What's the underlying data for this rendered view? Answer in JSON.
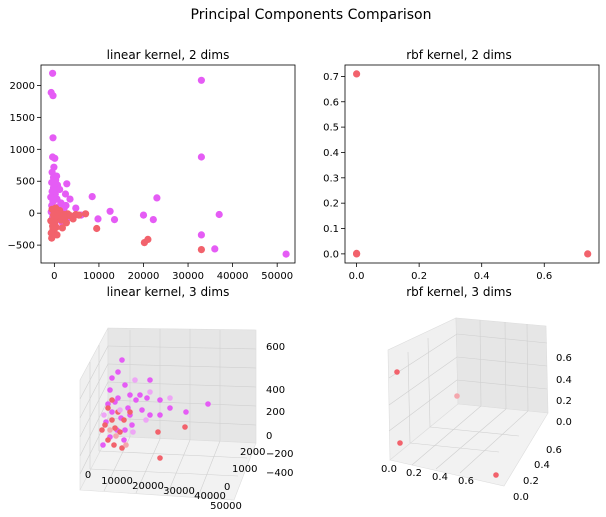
{
  "figure": {
    "title": "Principal Components Comparison"
  },
  "colors": {
    "magenta": "#e55cf5",
    "coral": "#f2626c",
    "light_magenta": "#eea6f6",
    "light_coral": "#f4a7ad"
  },
  "chart_data": [
    {
      "type": "scatter",
      "title": "linear kernel, 2 dims",
      "xlim": [
        -3000,
        54000
      ],
      "ylim": [
        -780,
        2320
      ],
      "xticks": [
        0,
        10000,
        20000,
        30000,
        40000,
        50000
      ],
      "xtick_labels": [
        "0",
        "10000",
        "20000",
        "30000",
        "40000",
        "50000"
      ],
      "yticks": [
        -500,
        0,
        500,
        1000,
        1500,
        2000
      ],
      "ytick_labels": [
        "−500",
        "0",
        "500",
        "1000",
        "1500",
        "2000"
      ],
      "series": [
        {
          "color": "#e55cf5",
          "points": [
            [
              -400,
              2190
            ],
            [
              -700,
              1890
            ],
            [
              -300,
              1840
            ],
            [
              -300,
              1180
            ],
            [
              -400,
              880
            ],
            [
              100,
              860
            ],
            [
              -500,
              640
            ],
            [
              -200,
              560
            ],
            [
              300,
              520
            ],
            [
              -600,
              480
            ],
            [
              700,
              440
            ],
            [
              2800,
              460
            ],
            [
              -200,
              400
            ],
            [
              1200,
              370
            ],
            [
              -500,
              340
            ],
            [
              200,
              300
            ],
            [
              2500,
              300
            ],
            [
              -800,
              250
            ],
            [
              600,
              220
            ],
            [
              3500,
              220
            ],
            [
              -300,
              180
            ],
            [
              1500,
              160
            ],
            [
              -600,
              120
            ],
            [
              900,
              100
            ],
            [
              2200,
              80
            ],
            [
              -200,
              60
            ],
            [
              400,
              40
            ],
            [
              4800,
              80
            ],
            [
              -700,
              20
            ],
            [
              1200,
              -20
            ],
            [
              -400,
              -60
            ],
            [
              800,
              -100
            ],
            [
              9800,
              -90
            ],
            [
              13500,
              -100
            ],
            [
              12500,
              30
            ],
            [
              20000,
              -30
            ],
            [
              22200,
              -100
            ],
            [
              23000,
              240
            ],
            [
              33000,
              2080
            ],
            [
              33000,
              880
            ],
            [
              33000,
              -340
            ],
            [
              36000,
              -560
            ],
            [
              37000,
              -20
            ],
            [
              52000,
              -640
            ],
            [
              8500,
              260
            ],
            [
              3000,
              -80
            ],
            [
              6000,
              -30
            ],
            [
              -300,
              350
            ],
            [
              500,
              580
            ],
            [
              -100,
              720
            ],
            [
              1800,
              -150
            ],
            [
              2600,
              120
            ]
          ]
        },
        {
          "color": "#f2626c",
          "points": [
            [
              -600,
              -390
            ],
            [
              -300,
              -250
            ],
            [
              100,
              -150
            ],
            [
              -800,
              -120
            ],
            [
              500,
              -80
            ],
            [
              900,
              -40
            ],
            [
              1500,
              -60
            ],
            [
              2200,
              -20
            ],
            [
              3000,
              -10
            ],
            [
              -400,
              -200
            ],
            [
              -100,
              -280
            ],
            [
              400,
              -220
            ],
            [
              1800,
              -230
            ],
            [
              2700,
              -150
            ],
            [
              4200,
              -90
            ],
            [
              5500,
              -30
            ],
            [
              7000,
              -10
            ],
            [
              9500,
              -240
            ],
            [
              20200,
              -460
            ],
            [
              21000,
              -410
            ],
            [
              33000,
              -570
            ],
            [
              -200,
              -30
            ],
            [
              600,
              10
            ],
            [
              1200,
              40
            ],
            [
              -500,
              60
            ],
            [
              300,
              80
            ],
            [
              1600,
              -110
            ],
            [
              -700,
              -310
            ],
            [
              2400,
              -70
            ],
            [
              3600,
              -40
            ],
            [
              4800,
              -20
            ],
            [
              600,
              -340
            ],
            [
              -200,
              -160
            ]
          ]
        }
      ]
    },
    {
      "type": "scatter",
      "title": "rbf kernel, 2 dims",
      "xlim": [
        -0.037,
        0.775
      ],
      "ylim": [
        -0.036,
        0.745
      ],
      "xticks": [
        0.0,
        0.2,
        0.4,
        0.6
      ],
      "xtick_labels": [
        "0.0",
        "0.2",
        "0.4",
        "0.6"
      ],
      "yticks": [
        0.0,
        0.1,
        0.2,
        0.3,
        0.4,
        0.5,
        0.6,
        0.7
      ],
      "ytick_labels": [
        "0.0",
        "0.1",
        "0.2",
        "0.3",
        "0.4",
        "0.5",
        "0.6",
        "0.7"
      ],
      "series": [
        {
          "color": "#f2626c",
          "points": [
            [
              0.0,
              0.71
            ],
            [
              0.0,
              0.0
            ],
            [
              0.739,
              0.0
            ],
            [
              0.0,
              0.002
            ]
          ]
        }
      ]
    },
    {
      "type": "scatter",
      "title": "linear kernel, 3 dims",
      "xticks": [
        0,
        10000,
        20000,
        30000,
        40000,
        50000
      ],
      "xtick_labels": [
        "0",
        "10000",
        "20000",
        "30000",
        "40000",
        "50000"
      ],
      "yticks": [
        0,
        1000,
        2000
      ],
      "ytick_labels": [
        "0",
        "1000",
        "2000"
      ],
      "zticks": [
        -400,
        -200,
        0,
        200,
        400,
        600
      ],
      "ztick_labels": [
        "−400",
        "−200",
        "0",
        "200",
        "400",
        "600"
      ]
    },
    {
      "type": "scatter",
      "title": "rbf kernel, 3 dims",
      "xticks": [
        0.0,
        0.2,
        0.4,
        0.6
      ],
      "xtick_labels": [
        "0.0",
        "0.2",
        "0.4",
        "0.6"
      ],
      "yticks": [
        0.0,
        0.2,
        0.4,
        0.6
      ],
      "ytick_labels": [
        "0.0",
        "0.2",
        "0.4",
        "0.6"
      ],
      "zticks": [
        0.0,
        0.2,
        0.4,
        0.6
      ],
      "ztick_labels": [
        "0.0",
        "0.2",
        "0.4",
        "0.6"
      ]
    }
  ]
}
